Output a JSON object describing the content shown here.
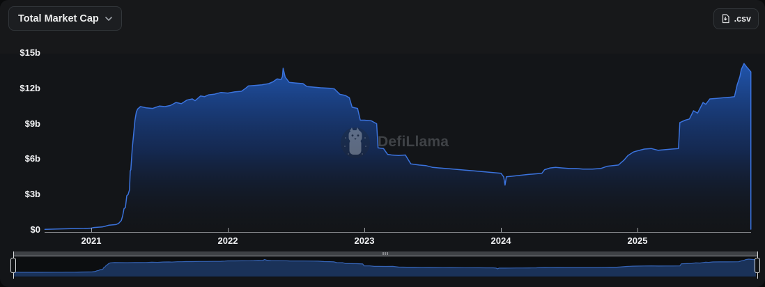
{
  "toolbar": {
    "metric_selector": {
      "label": "Total Market Cap",
      "icon": "chevron-down-icon"
    },
    "csv_button": {
      "label": ".csv",
      "icon": "download-file-icon"
    }
  },
  "watermark": {
    "text": "DefiLlama",
    "icon": "defillama-llama-logo"
  },
  "brush": {
    "left_pct": 0,
    "right_pct": 100,
    "grip_icon": "move-handle-grip"
  },
  "chart_data": {
    "type": "area",
    "title": "Total Market Cap",
    "unit": "USD billions",
    "grid": false,
    "legend": false,
    "x_axis": {
      "range": [
        2020.66,
        2025.83
      ],
      "ticks": [
        2021,
        2022,
        2023,
        2024,
        2025
      ],
      "tick_labels": [
        "2021",
        "2022",
        "2023",
        "2024",
        "2025"
      ]
    },
    "y_axis": {
      "range": [
        0,
        15
      ],
      "ticks": [
        0,
        3,
        6,
        9,
        12,
        15
      ],
      "tick_labels": [
        "$0",
        "$3b",
        "$6b",
        "$9b",
        "$12b",
        "$15b"
      ]
    },
    "colors": {
      "accent_line": "#3b73dd",
      "area_top": "#2360c4",
      "area_mid": "#16397f",
      "area_bottom": "#10151c",
      "background": "#131518",
      "header_background": "#17181a",
      "axis_text": "#f0f1f3",
      "axis_line": "#aeb1b5",
      "mini_line": "#3563b4",
      "mini_fill": "#1c3560",
      "move_bar": "#3e4145",
      "handle_border": "#d9dbdd"
    },
    "series": [
      {
        "name": "Total Market Cap",
        "points": [
          [
            2020.66,
            0.05
          ],
          [
            2020.75,
            0.07
          ],
          [
            2020.85,
            0.1
          ],
          [
            2020.95,
            0.12
          ],
          [
            2021.0,
            0.15
          ],
          [
            2021.02,
            0.2
          ],
          [
            2021.08,
            0.25
          ],
          [
            2021.1,
            0.3
          ],
          [
            2021.13,
            0.4
          ],
          [
            2021.18,
            0.45
          ],
          [
            2021.2,
            0.55
          ],
          [
            2021.22,
            0.8
          ],
          [
            2021.23,
            1.2
          ],
          [
            2021.24,
            1.8
          ],
          [
            2021.25,
            1.9
          ],
          [
            2021.26,
            2.9
          ],
          [
            2021.27,
            3.0
          ],
          [
            2021.28,
            3.4
          ],
          [
            2021.285,
            5.0
          ],
          [
            2021.29,
            5.1
          ],
          [
            2021.3,
            6.9
          ],
          [
            2021.31,
            8.1
          ],
          [
            2021.32,
            9.3
          ],
          [
            2021.33,
            10.0
          ],
          [
            2021.34,
            10.25
          ],
          [
            2021.36,
            10.45
          ],
          [
            2021.4,
            10.35
          ],
          [
            2021.45,
            10.3
          ],
          [
            2021.5,
            10.5
          ],
          [
            2021.54,
            10.45
          ],
          [
            2021.58,
            10.55
          ],
          [
            2021.62,
            10.8
          ],
          [
            2021.66,
            10.7
          ],
          [
            2021.7,
            11.0
          ],
          [
            2021.74,
            11.1
          ],
          [
            2021.76,
            10.95
          ],
          [
            2021.8,
            11.35
          ],
          [
            2021.83,
            11.3
          ],
          [
            2021.86,
            11.45
          ],
          [
            2021.9,
            11.5
          ],
          [
            2021.95,
            11.65
          ],
          [
            2022.0,
            11.6
          ],
          [
            2022.05,
            11.7
          ],
          [
            2022.1,
            11.75
          ],
          [
            2022.13,
            12.0
          ],
          [
            2022.15,
            12.2
          ],
          [
            2022.2,
            12.25
          ],
          [
            2022.25,
            12.3
          ],
          [
            2022.3,
            12.4
          ],
          [
            2022.33,
            12.55
          ],
          [
            2022.36,
            12.8
          ],
          [
            2022.39,
            12.75
          ],
          [
            2022.4,
            13.0
          ],
          [
            2022.405,
            13.7
          ],
          [
            2022.42,
            12.95
          ],
          [
            2022.45,
            12.5
          ],
          [
            2022.5,
            12.45
          ],
          [
            2022.55,
            12.4
          ],
          [
            2022.58,
            12.15
          ],
          [
            2022.63,
            12.1
          ],
          [
            2022.68,
            12.05
          ],
          [
            2022.75,
            12.0
          ],
          [
            2022.78,
            11.95
          ],
          [
            2022.82,
            11.5
          ],
          [
            2022.86,
            11.4
          ],
          [
            2022.89,
            11.2
          ],
          [
            2022.91,
            10.4
          ],
          [
            2022.95,
            10.3
          ],
          [
            2022.97,
            9.3
          ],
          [
            2023.0,
            9.3
          ],
          [
            2023.05,
            9.25
          ],
          [
            2023.09,
            9.0
          ],
          [
            2023.1,
            6.95
          ],
          [
            2023.14,
            6.9
          ],
          [
            2023.17,
            6.4
          ],
          [
            2023.2,
            6.35
          ],
          [
            2023.25,
            6.3
          ],
          [
            2023.3,
            6.35
          ],
          [
            2023.34,
            5.6
          ],
          [
            2023.4,
            5.5
          ],
          [
            2023.45,
            5.45
          ],
          [
            2023.5,
            5.3
          ],
          [
            2023.55,
            5.25
          ],
          [
            2023.6,
            5.2
          ],
          [
            2023.7,
            5.1
          ],
          [
            2023.8,
            5.0
          ],
          [
            2023.9,
            4.9
          ],
          [
            2023.95,
            4.85
          ],
          [
            2024.0,
            4.8
          ],
          [
            2024.02,
            4.5
          ],
          [
            2024.03,
            3.8
          ],
          [
            2024.04,
            4.5
          ],
          [
            2024.08,
            4.55
          ],
          [
            2024.12,
            4.6
          ],
          [
            2024.16,
            4.65
          ],
          [
            2024.2,
            4.7
          ],
          [
            2024.25,
            4.75
          ],
          [
            2024.3,
            4.8
          ],
          [
            2024.32,
            5.1
          ],
          [
            2024.36,
            5.25
          ],
          [
            2024.4,
            5.3
          ],
          [
            2024.45,
            5.25
          ],
          [
            2024.5,
            5.2
          ],
          [
            2024.55,
            5.2
          ],
          [
            2024.6,
            5.15
          ],
          [
            2024.67,
            5.15
          ],
          [
            2024.73,
            5.2
          ],
          [
            2024.78,
            5.4
          ],
          [
            2024.82,
            5.45
          ],
          [
            2024.86,
            5.5
          ],
          [
            2024.9,
            5.9
          ],
          [
            2024.93,
            6.3
          ],
          [
            2024.95,
            6.45
          ],
          [
            2024.97,
            6.6
          ],
          [
            2025.0,
            6.7
          ],
          [
            2025.05,
            6.85
          ],
          [
            2025.1,
            6.9
          ],
          [
            2025.15,
            6.75
          ],
          [
            2025.2,
            6.8
          ],
          [
            2025.25,
            6.85
          ],
          [
            2025.3,
            6.9
          ],
          [
            2025.31,
            9.1
          ],
          [
            2025.35,
            9.3
          ],
          [
            2025.38,
            9.4
          ],
          [
            2025.41,
            10.1
          ],
          [
            2025.44,
            9.9
          ],
          [
            2025.48,
            10.8
          ],
          [
            2025.5,
            10.65
          ],
          [
            2025.53,
            11.1
          ],
          [
            2025.58,
            11.15
          ],
          [
            2025.63,
            11.2
          ],
          [
            2025.68,
            11.25
          ],
          [
            2025.71,
            11.3
          ],
          [
            2025.73,
            12.3
          ],
          [
            2025.75,
            13.0
          ],
          [
            2025.76,
            13.6
          ],
          [
            2025.78,
            14.1
          ],
          [
            2025.8,
            13.8
          ],
          [
            2025.83,
            13.4
          ]
        ]
      }
    ]
  }
}
